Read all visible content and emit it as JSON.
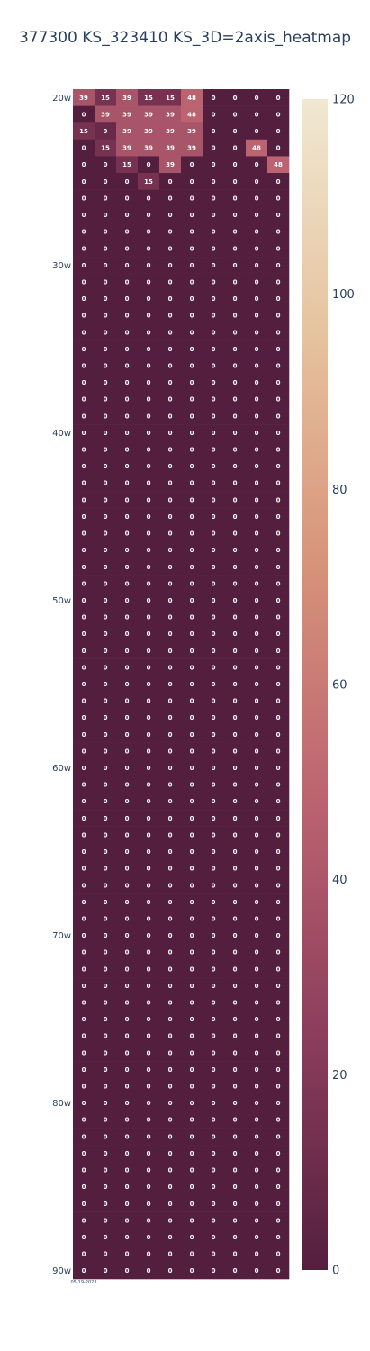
{
  "chart_data": {
    "type": "heatmap",
    "title": "377300 KS_323410 KS_3D=2axis_heatmap",
    "x_tick_label": "05-19-2023",
    "y_start_week": 20,
    "y_end_week": 90,
    "y_tick_labels": [
      "20w",
      "30w",
      "40w",
      "50w",
      "60w",
      "70w",
      "80w",
      "90w"
    ],
    "num_columns": 10,
    "zmin": 0,
    "zmax": 120,
    "colorbar_ticks": [
      "0",
      "20",
      "40",
      "60",
      "80",
      "100",
      "120"
    ],
    "colorscale": [
      "#541f3f",
      "#8c3d5c",
      "#bb6370",
      "#d7927a",
      "#e6c39f",
      "#f0e8d2"
    ],
    "nonzero_rows": [
      [
        39,
        15,
        39,
        15,
        15,
        48,
        0,
        0,
        0,
        0
      ],
      [
        0,
        39,
        39,
        39,
        39,
        48,
        0,
        0,
        0,
        0
      ],
      [
        15,
        9,
        39,
        39,
        39,
        39,
        0,
        0,
        0,
        0
      ],
      [
        0,
        15,
        39,
        39,
        39,
        39,
        0,
        0,
        48,
        0
      ],
      [
        0,
        0,
        15,
        0,
        39,
        0,
        0,
        0,
        0,
        48
      ],
      [
        0,
        0,
        0,
        15,
        0,
        0,
        0,
        0,
        0,
        0
      ]
    ]
  }
}
